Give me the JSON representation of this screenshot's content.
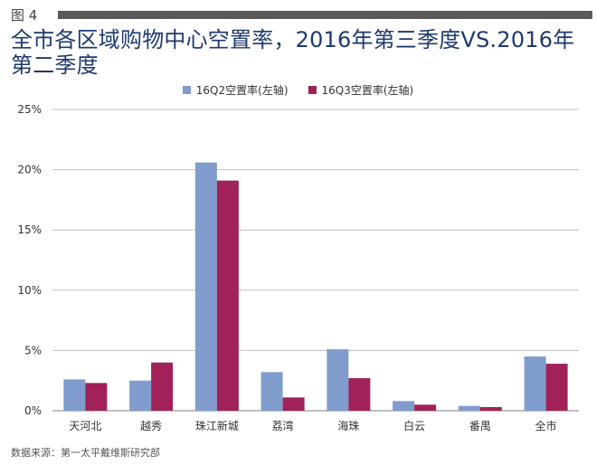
{
  "figure_label": "图 4",
  "title": "全市各区域购物中心空置率，2016年第三季度VS.2016年第二季度",
  "source": "数据来源：第一太平戴维斯研究部",
  "chart_data": {
    "type": "bar",
    "categories": [
      "天河北",
      "越秀",
      "珠江新城",
      "荔湾",
      "海珠",
      "白云",
      "番禺",
      "全市"
    ],
    "series": [
      {
        "name": "16Q2空置率(左轴)",
        "color": "#7f9ccc",
        "values": [
          2.6,
          2.5,
          20.6,
          3.2,
          5.1,
          0.8,
          0.4,
          4.5
        ]
      },
      {
        "name": "16Q3空置率(左轴)",
        "color": "#a02258",
        "values": [
          2.3,
          4.0,
          19.1,
          1.1,
          2.7,
          0.5,
          0.3,
          3.9
        ]
      }
    ],
    "yticks": [
      "0%",
      "5%",
      "10%",
      "15%",
      "20%",
      "25%"
    ],
    "ylim": [
      0,
      25
    ],
    "legend_position": "top-center",
    "grid": true
  }
}
